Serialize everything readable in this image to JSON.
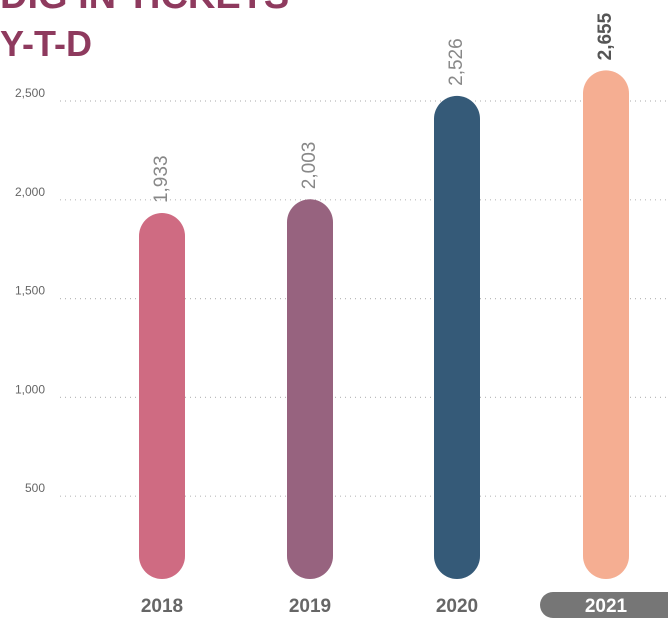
{
  "chart_data": {
    "type": "bar",
    "title": "DIG IN TICKETS",
    "subtitle": "Y-T-D",
    "categories": [
      "2018",
      "2019",
      "2020",
      "2021"
    ],
    "values": [
      1933,
      2003,
      2526,
      2655
    ],
    "value_labels": [
      "1,933",
      "2,003",
      "2,526",
      "2,655"
    ],
    "colors": [
      "#cf6b82",
      "#97637f",
      "#355a78",
      "#f5ae92"
    ],
    "highlight": 3,
    "ylim": [
      0,
      2500
    ],
    "yticks": [
      500,
      {
        "value": 1000,
        "label": "1,000"
      },
      {
        "value": 1500,
        "label": "1,500"
      },
      {
        "value": 2000,
        "label": "2,000"
      },
      {
        "value": 2500,
        "label": "2,500"
      }
    ],
    "grid": true
  }
}
